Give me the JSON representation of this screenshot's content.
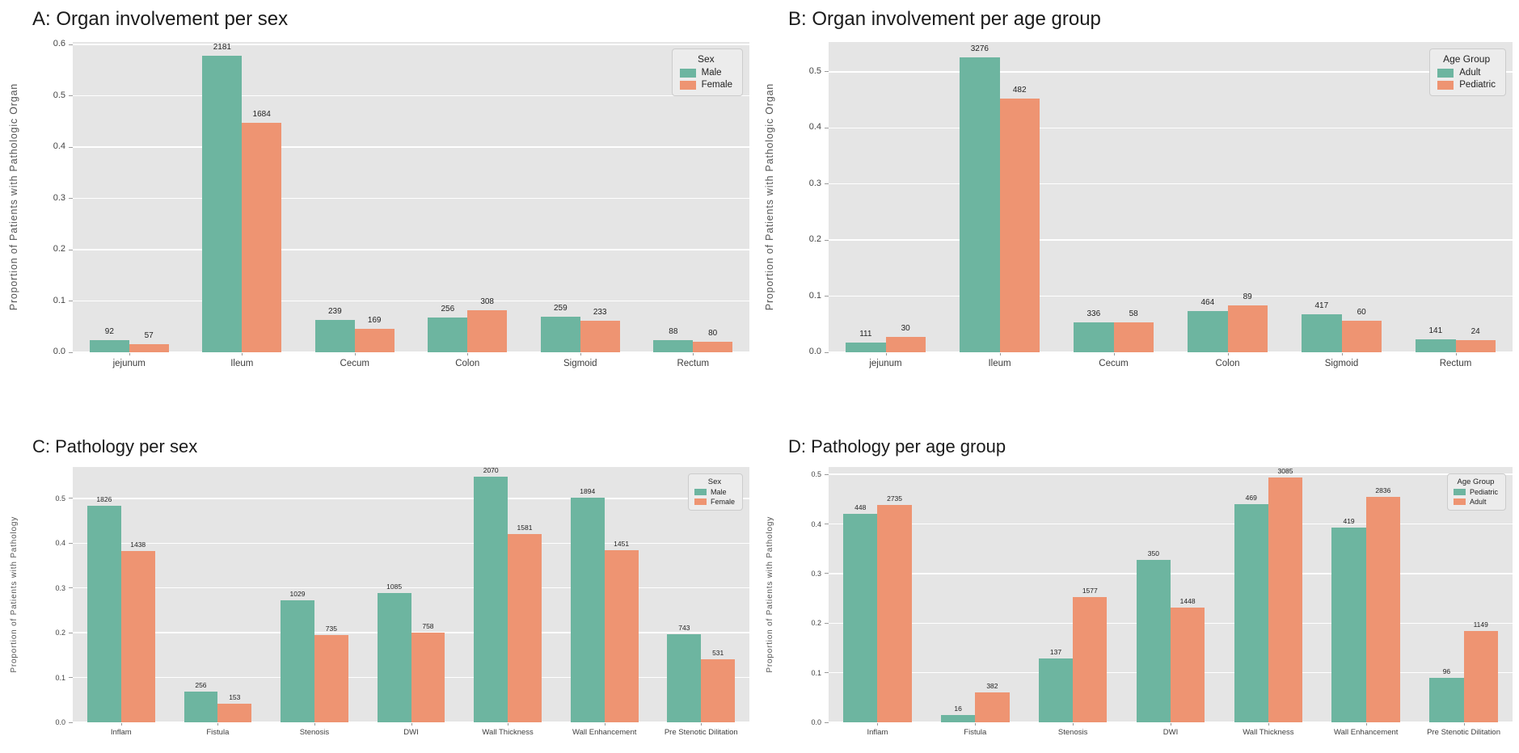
{
  "colors": {
    "green": "#6db5a0",
    "orange": "#ee9472",
    "plot_bg": "#e5e5e5",
    "grid": "#ffffff",
    "title_text": "#1b1b1b"
  },
  "chart_data": [
    {
      "id": "A",
      "type": "bar",
      "title": "A: Organ involvement per sex",
      "ylabel": "Proportion of Patients with Pathologic Organ",
      "legend_title": "Sex",
      "legend_position": "top-right",
      "grid": true,
      "categories": [
        "jejunum",
        "Ileum",
        "Cecum",
        "Colon",
        "Sigmoid",
        "Rectum"
      ],
      "ylim": [
        0,
        0.605
      ],
      "yticks": [
        0.0,
        0.1,
        0.2,
        0.3,
        0.4,
        0.5,
        0.6
      ],
      "series": [
        {
          "name": "Male",
          "color_key": "green",
          "proportions": [
            0.024,
            0.578,
            0.063,
            0.068,
            0.069,
            0.023
          ],
          "counts": [
            92,
            2181,
            239,
            256,
            259,
            88
          ]
        },
        {
          "name": "Female",
          "color_key": "orange",
          "proportions": [
            0.015,
            0.447,
            0.045,
            0.082,
            0.062,
            0.021
          ],
          "counts": [
            57,
            1684,
            169,
            308,
            233,
            80
          ]
        }
      ]
    },
    {
      "id": "B",
      "type": "bar",
      "title": "B: Organ involvement per age group",
      "ylabel": "Proportion of Patients with Pathologic Organ",
      "legend_title": "Age Group",
      "legend_position": "top-right",
      "grid": true,
      "categories": [
        "jejunum",
        "Ileum",
        "Cecum",
        "Colon",
        "Sigmoid",
        "Rectum"
      ],
      "ylim": [
        0,
        0.553
      ],
      "yticks": [
        0.0,
        0.1,
        0.2,
        0.3,
        0.4,
        0.5
      ],
      "series": [
        {
          "name": "Adult",
          "color_key": "green",
          "proportions": [
            0.018,
            0.525,
            0.054,
            0.074,
            0.067,
            0.023
          ],
          "counts": [
            111,
            3276,
            336,
            464,
            417,
            141
          ]
        },
        {
          "name": "Pediatric",
          "color_key": "orange",
          "proportions": [
            0.028,
            0.452,
            0.054,
            0.084,
            0.056,
            0.022
          ],
          "counts": [
            30,
            482,
            58,
            89,
            60,
            24
          ]
        }
      ]
    },
    {
      "id": "C",
      "type": "bar",
      "title": "C: Pathology per sex",
      "ylabel": "Proportion of Patients with Pathology",
      "legend_title": "Sex",
      "legend_position": "top-right",
      "grid": true,
      "categories": [
        "Inflam",
        "Fistula",
        "Stenosis",
        "DWI",
        "Wall Thickness",
        "Wall Enhancement",
        "Pre Stenotic Dilitation"
      ],
      "ylim": [
        0,
        0.57
      ],
      "yticks": [
        0.0,
        0.1,
        0.2,
        0.3,
        0.4,
        0.5
      ],
      "series": [
        {
          "name": "Male",
          "color_key": "green",
          "proportions": [
            0.484,
            0.068,
            0.273,
            0.288,
            0.549,
            0.502,
            0.197
          ],
          "counts": [
            1826,
            256,
            1029,
            1085,
            2070,
            1894,
            743
          ]
        },
        {
          "name": "Female",
          "color_key": "orange",
          "proportions": [
            0.382,
            0.041,
            0.195,
            0.201,
            0.42,
            0.385,
            0.141
          ],
          "counts": [
            1438,
            153,
            735,
            758,
            1581,
            1451,
            531
          ]
        }
      ]
    },
    {
      "id": "D",
      "type": "bar",
      "title": "D: Pathology per age group",
      "ylabel": "Proportion of Patients with Pathology",
      "legend_title": "Age Group",
      "legend_position": "top-right",
      "grid": true,
      "categories": [
        "Inflam",
        "Fistula",
        "Stenosis",
        "DWI",
        "Wall Thickness",
        "Wall Enhancement",
        "Pre Stenotic Dilitation"
      ],
      "ylim": [
        0,
        0.515
      ],
      "yticks": [
        0.0,
        0.1,
        0.2,
        0.3,
        0.4,
        0.5
      ],
      "series": [
        {
          "name": "Pediatric",
          "color_key": "green",
          "proportions": [
            0.42,
            0.015,
            0.129,
            0.328,
            0.44,
            0.393,
            0.09
          ],
          "counts": [
            448,
            16,
            137,
            350,
            469,
            419,
            96
          ]
        },
        {
          "name": "Adult",
          "color_key": "orange",
          "proportions": [
            0.438,
            0.061,
            0.253,
            0.232,
            0.494,
            0.454,
            0.184
          ],
          "counts": [
            2735,
            382,
            1577,
            1448,
            3085,
            2836,
            1149
          ]
        }
      ]
    }
  ]
}
